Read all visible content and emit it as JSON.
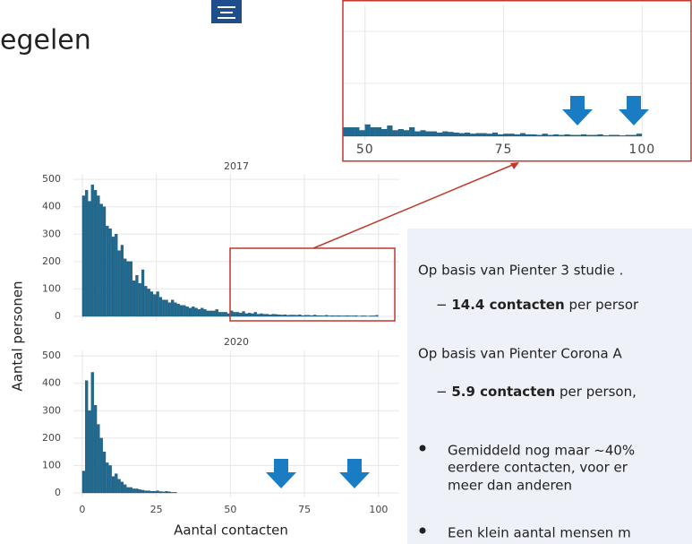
{
  "header": {
    "title": "egelen"
  },
  "shared_axes": {
    "x_label": "Aantal contacten",
    "y_label": "Aantal personen"
  },
  "chart_data": [
    {
      "type": "histogram",
      "title": "2017",
      "color": "#1d6a92",
      "bins": [
        0,
        1,
        2,
        3,
        4,
        5,
        6,
        7,
        8,
        9,
        10,
        11,
        12,
        13,
        14,
        15,
        16,
        17,
        18,
        19,
        20,
        21,
        22,
        23,
        24,
        25,
        26,
        27,
        28,
        29,
        30,
        31,
        32,
        33,
        34,
        35,
        36,
        37,
        38,
        39,
        40,
        41,
        42,
        43,
        44,
        45,
        46,
        47,
        48,
        49,
        50,
        51,
        52,
        53,
        54,
        55,
        56,
        57,
        58,
        59,
        60,
        61,
        62,
        63,
        64,
        65,
        66,
        67,
        68,
        69,
        70,
        71,
        72,
        73,
        74,
        75,
        76,
        77,
        78,
        79,
        80,
        81,
        82,
        83,
        84,
        85,
        86,
        87,
        88,
        89,
        90,
        91,
        92,
        93,
        94,
        95,
        96,
        97,
        98,
        99,
        100
      ],
      "values": [
        440,
        460,
        420,
        480,
        460,
        440,
        410,
        400,
        330,
        320,
        290,
        300,
        240,
        260,
        210,
        200,
        200,
        130,
        150,
        120,
        170,
        110,
        100,
        90,
        80,
        90,
        70,
        60,
        60,
        50,
        60,
        50,
        45,
        40,
        40,
        35,
        30,
        35,
        30,
        25,
        30,
        25,
        20,
        20,
        20,
        25,
        15,
        15,
        15,
        10,
        20,
        15,
        15,
        12,
        18,
        10,
        12,
        10,
        15,
        8,
        10,
        8,
        8,
        6,
        8,
        7,
        6,
        5,
        6,
        4,
        5,
        5,
        4,
        6,
        3,
        4,
        4,
        3,
        5,
        3,
        3,
        2,
        4,
        2,
        3,
        2,
        3,
        2,
        2,
        3,
        2,
        2,
        3,
        1,
        2,
        2,
        1,
        2,
        2,
        4
      ],
      "xlim": [
        -3,
        107
      ],
      "ylim": [
        -15,
        520
      ],
      "yticks": [
        0,
        100,
        200,
        300,
        400,
        500
      ],
      "grid": true
    },
    {
      "type": "histogram",
      "title": "2020",
      "color": "#1d6a92",
      "bins": [
        0,
        1,
        2,
        3,
        4,
        5,
        6,
        7,
        8,
        9,
        10,
        11,
        12,
        13,
        14,
        15,
        16,
        17,
        18,
        19,
        20,
        21,
        22,
        23,
        24,
        25,
        26,
        27,
        28,
        29,
        30,
        31,
        32
      ],
      "values": [
        80,
        410,
        300,
        440,
        320,
        250,
        200,
        150,
        110,
        100,
        60,
        70,
        50,
        40,
        30,
        20,
        20,
        15,
        15,
        12,
        10,
        8,
        8,
        6,
        6,
        8,
        5,
        4,
        6,
        4,
        2,
        2
      ],
      "xlim": [
        -3,
        107
      ],
      "xticks": [
        0,
        25,
        50,
        75,
        100
      ],
      "ylim": [
        -15,
        520
      ],
      "yticks": [
        0,
        100,
        200,
        300,
        400,
        500
      ],
      "grid": true
    },
    {
      "type": "histogram",
      "color": "#1d6a92",
      "bins": [
        46,
        47,
        48,
        49,
        50,
        51,
        52,
        53,
        54,
        55,
        56,
        57,
        58,
        59,
        60,
        61,
        62,
        63,
        64,
        65,
        66,
        67,
        68,
        69,
        70,
        71,
        72,
        73,
        74,
        75,
        76,
        77,
        78,
        79,
        80,
        81,
        82,
        83,
        84,
        85,
        86,
        87,
        88,
        89,
        90,
        91,
        92,
        93,
        94,
        95,
        96,
        97,
        98,
        99,
        100
      ],
      "values": [
        15,
        15,
        15,
        10,
        20,
        15,
        15,
        12,
        18,
        10,
        12,
        10,
        15,
        8,
        10,
        8,
        8,
        6,
        8,
        7,
        6,
        5,
        6,
        4,
        5,
        5,
        4,
        6,
        3,
        4,
        4,
        3,
        5,
        3,
        3,
        2,
        4,
        2,
        3,
        2,
        3,
        2,
        2,
        3,
        2,
        2,
        3,
        1,
        2,
        2,
        1,
        2,
        2,
        4
      ],
      "xlim": [
        46,
        109
      ],
      "xticks": [
        50,
        75,
        100
      ],
      "ylim": [
        -8,
        225
      ],
      "grid": true
    }
  ],
  "text_panel": {
    "line1": "Op basis van Pienter 3 studie .",
    "item1": {
      "bold": "14.4 contacten",
      "rest": " per persor"
    },
    "line2": "Op basis van Pienter Corona A",
    "item2": {
      "bold": "5.9 contacten",
      "rest": " per person,"
    },
    "bullet1": [
      "Gemiddeld nog maar ~40%",
      "eerdere contacten, voor er",
      "meer dan anderen"
    ],
    "bullet2": "Een klein aantal mensen m"
  }
}
